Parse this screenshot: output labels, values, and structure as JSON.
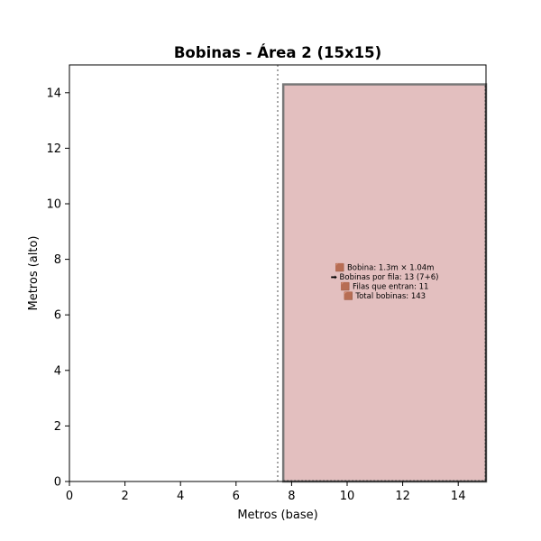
{
  "chart_data": {
    "type": "area",
    "title": "Bobinas - Área 2 (15x15)",
    "xlabel": "Metros (base)",
    "ylabel": "Metros (alto)",
    "xlim": [
      0,
      15
    ],
    "ylim": [
      0,
      15
    ],
    "xticks": [
      "0",
      "2",
      "4",
      "6",
      "8",
      "10",
      "12",
      "14"
    ],
    "yticks": [
      "0",
      "2",
      "4",
      "6",
      "8",
      "10",
      "12",
      "14"
    ],
    "grid": false,
    "divider_x": 7.5,
    "filled_region": {
      "x0": 7.7,
      "x1": 15,
      "y0": 0,
      "y1": 14.3,
      "fill": "#e3bfbf",
      "edge": "#777777"
    },
    "annotation": {
      "x": 11.35,
      "y": 7.2,
      "lines": [
        "🟫 Bobina: 1.3m × 1.04m",
        "➡ Bobinas por fila: 13 (7+6)",
        "🟫 Filas que entran: 11",
        "🟫 Total bobinas: 143"
      ]
    }
  }
}
